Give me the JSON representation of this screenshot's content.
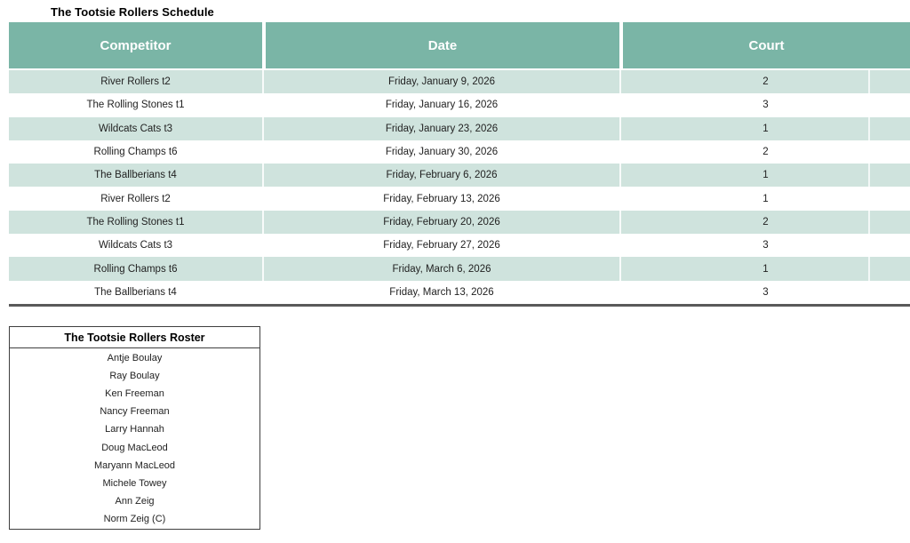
{
  "colors": {
    "header_bg": "#7ab5a6",
    "header_text": "#ffffff",
    "band_bg": "#cfe3dd",
    "table_bottom_border": "#595959",
    "text": "#1f1f1f"
  },
  "schedule": {
    "title": "The Tootsie Rollers Schedule",
    "columns": [
      "Competitor",
      "Date",
      "Court"
    ],
    "rows": [
      {
        "competitor": "River Rollers t2",
        "date": "Friday, January 9, 2026",
        "court": 2
      },
      {
        "competitor": "The Rolling Stones t1",
        "date": "Friday, January 16, 2026",
        "court": 3
      },
      {
        "competitor": "Wildcats Cats t3",
        "date": "Friday, January 23, 2026",
        "court": 1
      },
      {
        "competitor": "Rolling Champs t6",
        "date": "Friday, January 30, 2026",
        "court": 2
      },
      {
        "competitor": "The Ballberians t4",
        "date": "Friday, February 6, 2026",
        "court": 1
      },
      {
        "competitor": "River Rollers t2",
        "date": "Friday, February 13, 2026",
        "court": 1
      },
      {
        "competitor": "The Rolling Stones t1",
        "date": "Friday, February 20, 2026",
        "court": 2
      },
      {
        "competitor": "Wildcats Cats t3",
        "date": "Friday, February 27, 2026",
        "court": 3
      },
      {
        "competitor": "Rolling Champs t6",
        "date": "Friday, March 6, 2026",
        "court": 1
      },
      {
        "competitor": "The Ballberians t4",
        "date": "Friday, March 13, 2026",
        "court": 3
      }
    ]
  },
  "roster": {
    "title": "The Tootsie Rollers Roster",
    "players": [
      "Antje Boulay",
      "Ray Boulay",
      "Ken Freeman",
      "Nancy Freeman",
      "Larry Hannah",
      "Doug MacLeod",
      "Maryann MacLeod",
      "Michele Towey",
      "Ann Zeig",
      "Norm Zeig (C)"
    ]
  }
}
